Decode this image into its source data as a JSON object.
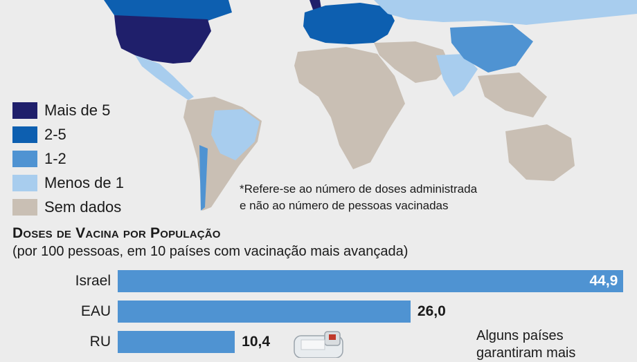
{
  "legend": {
    "items": [
      {
        "label": "Mais de 5",
        "color": "#1f1f6b"
      },
      {
        "label": "2-5",
        "color": "#0d5fb0"
      },
      {
        "label": "1-2",
        "color": "#4f93d2"
      },
      {
        "label": "Menos de 1",
        "color": "#a8cdee"
      },
      {
        "label": "Sem dados",
        "color": "#c9bfb4"
      }
    ]
  },
  "footnote": {
    "line1": "*Refere-se ao número de doses administrada",
    "line2": "e não ao número de pessoas vacinadas"
  },
  "chart_data": {
    "type": "bar",
    "orientation": "horizontal",
    "title": "Doses de Vacina por População",
    "subtitle": "(por 100 pessoas, em 10 países com vacinação mais avançada)",
    "categories": [
      "Israel",
      "EAU",
      "RU"
    ],
    "values": [
      44.9,
      26.0,
      10.4
    ],
    "value_labels": [
      "44,9",
      "26,0",
      "10,4"
    ],
    "xlim": [
      0,
      45
    ],
    "bar_color": "#4f93d2",
    "grid": false
  },
  "side_note": {
    "line1": "Alguns países",
    "line2": "garantiram mais"
  }
}
